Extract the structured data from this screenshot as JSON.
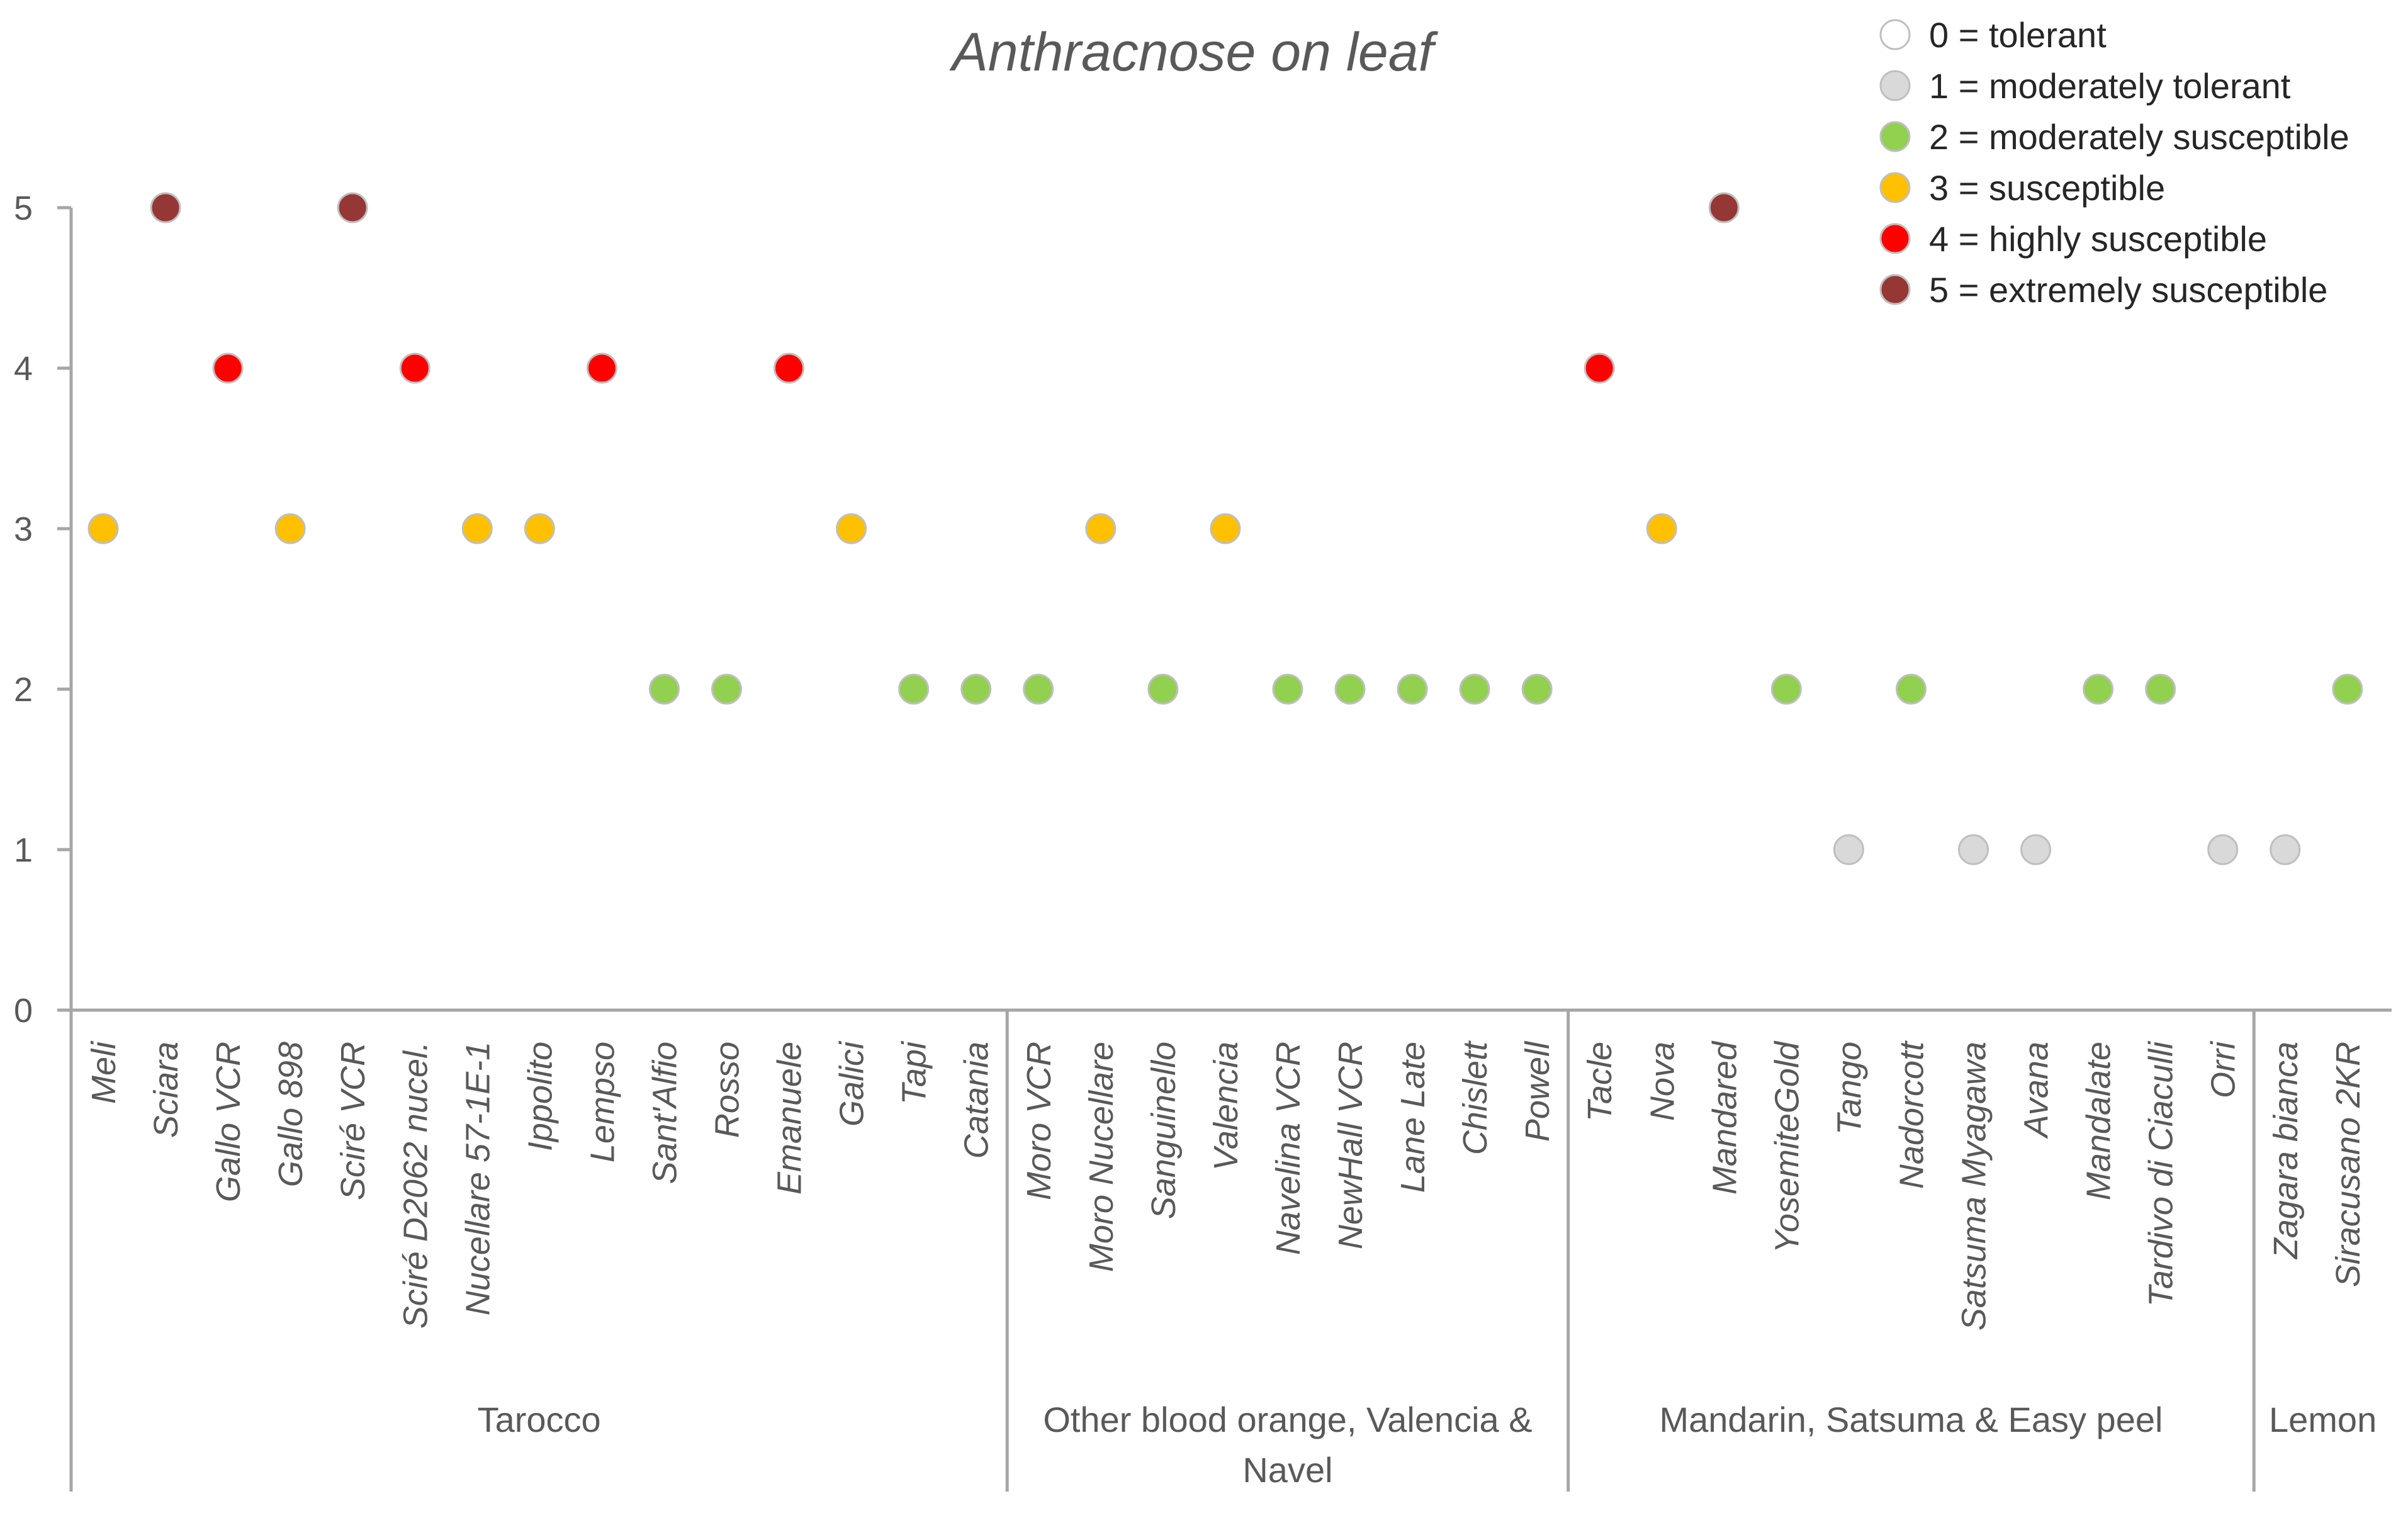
{
  "chart_data": {
    "type": "scatter",
    "title": "Anthracnose on leaf",
    "xlabel": "",
    "ylabel": "",
    "ylim": [
      0,
      5
    ],
    "yticks": [
      "0",
      "1",
      "2",
      "3",
      "4",
      "5"
    ],
    "grid": false,
    "legend_position": "top-right",
    "categories": [
      "Meli",
      "Sciara",
      "Gallo VCR",
      "Gallo 898",
      "Sciré VCR",
      "Sciré D2062 nucel.",
      "Nucellare 57-1E-1",
      "Ippolito",
      "Lempso",
      "Sant'Alfio",
      "Rosso",
      "Emanuele",
      "Galici",
      "Tapi",
      "Catania",
      "Moro VCR",
      "Moro Nucellare",
      "Sanguinello",
      "Valencia",
      "Navelina VCR",
      "NewHall VCR",
      "Lane Late",
      "Chislett",
      "Powell",
      "Tacle",
      "Nova",
      "Mandared",
      "YosemiteGold",
      "Tango",
      "Nadorcott",
      "Satsuma Myagawa",
      "Avana",
      "Mandalate",
      "Tardivo di Ciaculli",
      "Orri",
      "Zagara bianca",
      "Siracusano 2KR"
    ],
    "values": [
      3,
      5,
      4,
      3,
      5,
      4,
      3,
      3,
      4,
      2,
      2,
      4,
      3,
      2,
      2,
      2,
      3,
      2,
      3,
      2,
      2,
      2,
      2,
      2,
      4,
      3,
      5,
      2,
      1,
      2,
      1,
      1,
      2,
      2,
      1,
      1,
      2
    ],
    "groups": [
      {
        "name": "Tarocco",
        "lines": [
          "Tarocco"
        ],
        "start": 0,
        "end": 14
      },
      {
        "name": "Other blood orange, Valencia & Navel",
        "lines": [
          "Other blood orange, Valencia &",
          "Navel"
        ],
        "start": 15,
        "end": 23
      },
      {
        "name": "Mandarin, Satsuma & Easy peel",
        "lines": [
          "Mandarin, Satsuma & Easy peel"
        ],
        "start": 24,
        "end": 34
      },
      {
        "name": "Lemon",
        "lines": [
          "Lemon"
        ],
        "start": 35,
        "end": 36
      }
    ],
    "legend": [
      {
        "label": "0 = tolerant",
        "value": 0,
        "color": "#ffffff"
      },
      {
        "label": "1 = moderately tolerant",
        "value": 1,
        "color": "#d9d9d9"
      },
      {
        "label": "2 = moderately susceptible",
        "value": 2,
        "color": "#92d050"
      },
      {
        "label": "3 = susceptible",
        "value": 3,
        "color": "#ffc000"
      },
      {
        "label": "4 = highly susceptible",
        "value": 4,
        "color": "#ff0000"
      },
      {
        "label": "5 = extremely susceptible",
        "value": 5,
        "color": "#953735"
      }
    ]
  }
}
